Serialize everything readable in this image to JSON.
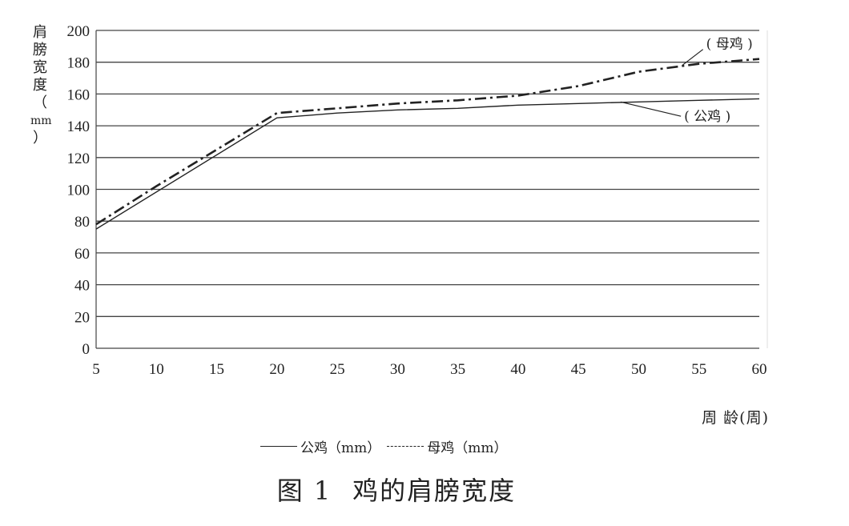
{
  "chart_data": {
    "type": "line",
    "ylabel": [
      "肩",
      "膀",
      "宽",
      "度",
      "（",
      "mm",
      "）"
    ],
    "xlabel": "周 龄(周)",
    "xlim": [
      5,
      60
    ],
    "ylim": [
      0,
      200
    ],
    "xticks": [
      5,
      10,
      15,
      20,
      25,
      30,
      35,
      40,
      45,
      50,
      55,
      60
    ],
    "yticks": [
      0,
      20,
      40,
      60,
      80,
      100,
      120,
      140,
      160,
      180,
      200
    ],
    "grid": "horizontal",
    "series": [
      {
        "name": "公鸡(mm)",
        "style": "solid",
        "color": "#222222",
        "x": [
          5,
          20,
          25,
          30,
          35,
          40,
          45,
          50,
          55,
          60
        ],
        "y": [
          75,
          145,
          148,
          150,
          151,
          153,
          154,
          155,
          156,
          157
        ]
      },
      {
        "name": "母鸡(mm)",
        "style": "dash-dot",
        "color": "#222222",
        "x": [
          5,
          10,
          15,
          20,
          25,
          30,
          35,
          40,
          45,
          50,
          55,
          60
        ],
        "y": [
          78,
          102,
          125,
          148,
          151,
          154,
          156,
          159,
          165,
          174,
          179,
          182
        ]
      }
    ],
    "annotations": [
      {
        "text": "( 母鸡 )",
        "series": "母鸡(mm)"
      },
      {
        "text": "( 公鸡 )",
        "series": "公鸡(mm)"
      }
    ]
  },
  "legend": {
    "rooster": "公鸡（mm）",
    "hen": "母鸡（mm）"
  },
  "caption": {
    "label": "图",
    "number": "1",
    "title": "鸡的肩膀宽度"
  }
}
